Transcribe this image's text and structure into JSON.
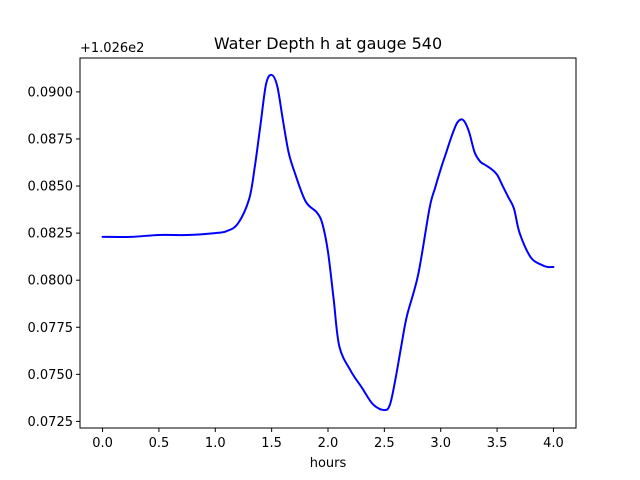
{
  "chart_data": {
    "type": "line",
    "title": "Water Depth h at gauge 540",
    "xlabel": "hours",
    "ylabel": "",
    "y_offset_label": "+1.026e2",
    "xlim": [
      -0.2,
      4.2
    ],
    "ylim": [
      0.07215,
      0.0918
    ],
    "xticks": [
      0.0,
      0.5,
      1.0,
      1.5,
      2.0,
      2.5,
      3.0,
      3.5,
      4.0
    ],
    "xtick_labels": [
      "0.0",
      "0.5",
      "1.0",
      "1.5",
      "2.0",
      "2.5",
      "3.0",
      "3.5",
      "4.0"
    ],
    "yticks": [
      0.0725,
      0.075,
      0.0775,
      0.08,
      0.0825,
      0.085,
      0.0875,
      0.09
    ],
    "ytick_labels": [
      "0.0725",
      "0.0750",
      "0.0775",
      "0.0800",
      "0.0825",
      "0.0850",
      "0.0875",
      "0.0900"
    ],
    "grid": false,
    "series": [
      {
        "color": "#0000ff",
        "x": [
          0.0,
          0.25,
          0.5,
          0.75,
          1.0,
          1.1,
          1.2,
          1.3,
          1.35,
          1.4,
          1.45,
          1.5,
          1.55,
          1.6,
          1.65,
          1.7,
          1.8,
          1.9,
          1.95,
          2.0,
          2.05,
          2.1,
          2.2,
          2.3,
          2.4,
          2.5,
          2.55,
          2.6,
          2.65,
          2.7,
          2.8,
          2.9,
          2.95,
          3.0,
          3.05,
          3.1,
          3.15,
          3.2,
          3.25,
          3.3,
          3.35,
          3.4,
          3.45,
          3.5,
          3.55,
          3.6,
          3.65,
          3.7,
          3.8,
          3.9,
          3.95,
          4.0
        ],
        "y": [
          0.0823,
          0.0823,
          0.0824,
          0.0824,
          0.0825,
          0.0826,
          0.083,
          0.0843,
          0.086,
          0.0882,
          0.0904,
          0.0909,
          0.0903,
          0.0885,
          0.0868,
          0.0858,
          0.0842,
          0.0836,
          0.083,
          0.0815,
          0.079,
          0.0765,
          0.0752,
          0.0743,
          0.0734,
          0.0731,
          0.0734,
          0.0748,
          0.0765,
          0.0781,
          0.0803,
          0.0838,
          0.0849,
          0.0859,
          0.0868,
          0.0877,
          0.0884,
          0.0885,
          0.0879,
          0.0868,
          0.0863,
          0.0861,
          0.0859,
          0.0856,
          0.085,
          0.0844,
          0.0838,
          0.0825,
          0.0812,
          0.0808,
          0.0807,
          0.0807
        ]
      }
    ]
  }
}
